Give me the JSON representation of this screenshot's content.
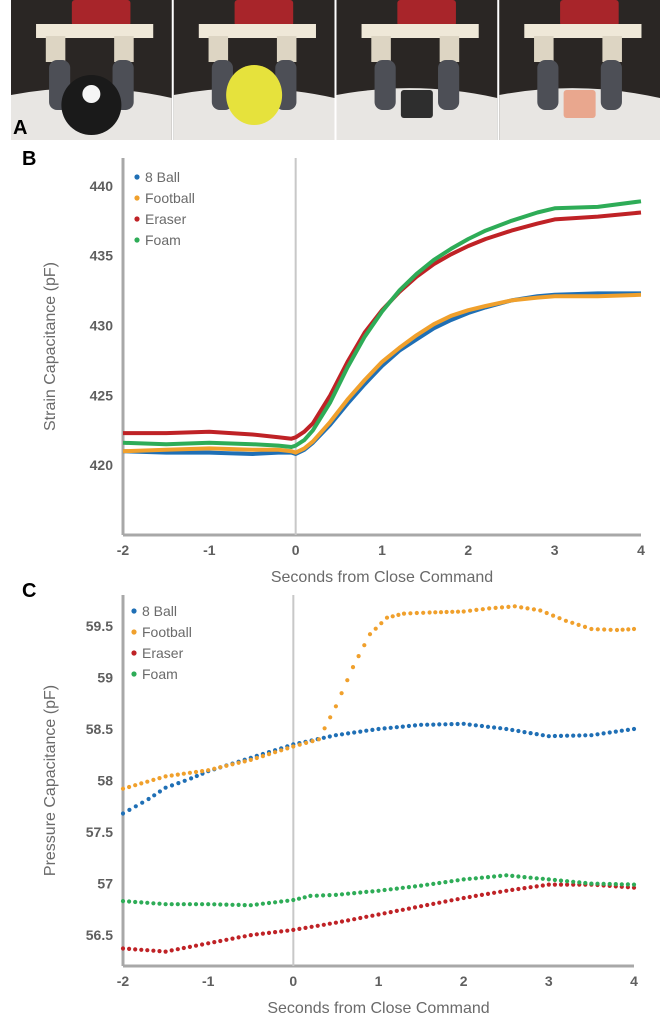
{
  "photos": {
    "panel_label": "A",
    "objects": [
      {
        "name": "8 Ball",
        "color": "#1a1a1a",
        "shape": "sphere"
      },
      {
        "name": "Football",
        "color": "#e6e23c",
        "shape": "ellipse"
      },
      {
        "name": "Eraser",
        "color": "#2e2e2e",
        "shape": "block"
      },
      {
        "name": "Foam",
        "color": "#e9a78e",
        "shape": "block"
      }
    ]
  },
  "panels": [
    {
      "label": "B"
    },
    {
      "label": "C"
    }
  ],
  "colors": {
    "8 Ball": "#1f6fb5",
    "Football": "#f0a02c",
    "Eraser": "#bf2226",
    "Foam": "#2eac57",
    "axis": "#a8a8a8",
    "zero_line": "#c8c8c8"
  },
  "chart_data": [
    {
      "type": "line",
      "title": "",
      "xlabel": "Seconds from Close Command",
      "ylabel": "Strain Capacitance (pF)",
      "xlim": [
        -2,
        4
      ],
      "ylim": [
        415,
        442
      ],
      "xticks": [
        "-2",
        "-1",
        "0",
        "1",
        "2",
        "3",
        "4"
      ],
      "yticks": [
        "420",
        "425",
        "430",
        "435",
        "440"
      ],
      "ytick_values": [
        420,
        425,
        430,
        435,
        440
      ],
      "legend_position": "top-left",
      "line_style": "solid",
      "series": [
        {
          "name": "8 Ball",
          "x": [
            -2,
            -1.5,
            -1,
            -0.5,
            -0.2,
            -0.05,
            0,
            0.1,
            0.2,
            0.4,
            0.6,
            0.8,
            1,
            1.2,
            1.4,
            1.6,
            1.8,
            2,
            2.2,
            2.5,
            2.8,
            3,
            3.5,
            4
          ],
          "y": [
            421.0,
            420.9,
            420.9,
            420.8,
            420.9,
            420.9,
            420.8,
            421.1,
            421.6,
            422.9,
            424.4,
            425.8,
            427.1,
            428.2,
            429.0,
            429.8,
            430.4,
            430.9,
            431.3,
            431.8,
            432.1,
            432.2,
            432.3,
            432.3
          ]
        },
        {
          "name": "Football",
          "x": [
            -2,
            -1.5,
            -1,
            -0.5,
            -0.2,
            -0.05,
            0,
            0.1,
            0.2,
            0.4,
            0.6,
            0.8,
            1,
            1.2,
            1.4,
            1.6,
            1.8,
            2,
            2.2,
            2.5,
            2.8,
            3,
            3.5,
            4
          ],
          "y": [
            421.0,
            421.1,
            421.2,
            421.1,
            421.1,
            421.0,
            420.9,
            421.2,
            421.7,
            423.1,
            424.7,
            426.1,
            427.4,
            428.4,
            429.3,
            430.1,
            430.7,
            431.1,
            431.4,
            431.8,
            432.0,
            432.1,
            432.1,
            432.2
          ]
        },
        {
          "name": "Eraser",
          "x": [
            -2,
            -1.5,
            -1,
            -0.5,
            -0.2,
            -0.05,
            0,
            0.1,
            0.2,
            0.4,
            0.6,
            0.8,
            1,
            1.2,
            1.4,
            1.6,
            1.8,
            2,
            2.2,
            2.5,
            2.8,
            3,
            3.5,
            4
          ],
          "y": [
            422.3,
            422.3,
            422.4,
            422.2,
            422.0,
            421.9,
            422.0,
            422.4,
            423.0,
            425.0,
            427.4,
            429.5,
            431.1,
            432.4,
            433.5,
            434.4,
            435.1,
            435.7,
            436.2,
            436.8,
            437.3,
            437.6,
            437.8,
            438.1
          ]
        },
        {
          "name": "Foam",
          "x": [
            -2,
            -1.5,
            -1,
            -0.5,
            -0.2,
            -0.05,
            0,
            0.1,
            0.2,
            0.4,
            0.6,
            0.8,
            1,
            1.2,
            1.4,
            1.6,
            1.8,
            2,
            2.2,
            2.5,
            2.8,
            3,
            3.5,
            4
          ],
          "y": [
            421.6,
            421.5,
            421.6,
            421.5,
            421.4,
            421.3,
            421.4,
            421.8,
            422.5,
            424.5,
            427.0,
            429.2,
            431.0,
            432.5,
            433.7,
            434.7,
            435.5,
            436.2,
            436.8,
            437.5,
            438.1,
            438.4,
            438.5,
            438.9
          ]
        }
      ]
    },
    {
      "type": "scatter",
      "title": "",
      "xlabel": "Seconds from Close Command",
      "ylabel": "Pressure Capacitance (pF)",
      "xlim": [
        -2,
        4
      ],
      "ylim": [
        56.2,
        59.8
      ],
      "xticks": [
        "-2",
        "-1",
        "0",
        "1",
        "2",
        "3",
        "4"
      ],
      "yticks": [
        "56.5",
        "57",
        "57.5",
        "58",
        "58.5",
        "59",
        "59.5"
      ],
      "ytick_values": [
        56.5,
        57,
        57.5,
        58,
        58.5,
        59,
        59.5
      ],
      "legend_position": "top-left",
      "line_style": "dotted",
      "series": [
        {
          "name": "8 Ball",
          "x": [
            -2,
            -1.7,
            -1.5,
            -1.2,
            -1,
            -0.5,
            0,
            0.5,
            1,
            1.5,
            2,
            2.5,
            3,
            3.5,
            4
          ],
          "y": [
            57.68,
            57.82,
            57.93,
            58.02,
            58.09,
            58.22,
            58.35,
            58.44,
            58.5,
            58.54,
            58.55,
            58.5,
            58.43,
            58.44,
            58.5
          ]
        },
        {
          "name": "Football",
          "x": [
            -2,
            -1.5,
            -1,
            -0.5,
            0,
            0.3,
            0.5,
            0.7,
            0.9,
            1.1,
            1.3,
            1.6,
            2,
            2.3,
            2.6,
            2.9,
            3.2,
            3.5,
            3.8,
            4
          ],
          "y": [
            57.92,
            58.04,
            58.1,
            58.2,
            58.33,
            58.4,
            58.72,
            59.1,
            59.42,
            59.58,
            59.62,
            59.63,
            59.64,
            59.67,
            59.69,
            59.65,
            59.55,
            59.47,
            59.46,
            59.47
          ]
        },
        {
          "name": "Eraser",
          "x": [
            -2,
            -1.5,
            -1,
            -0.5,
            0,
            0.5,
            1,
            1.5,
            2,
            2.5,
            3,
            3.5,
            4
          ],
          "y": [
            56.37,
            56.34,
            56.42,
            56.5,
            56.55,
            56.62,
            56.7,
            56.78,
            56.86,
            56.93,
            56.99,
            56.99,
            56.96
          ]
        },
        {
          "name": "Foam",
          "x": [
            -2,
            -1.5,
            -1,
            -0.5,
            0,
            0.2,
            0.5,
            1,
            1.5,
            2,
            2.5,
            3,
            3.5,
            4
          ],
          "y": [
            56.83,
            56.8,
            56.8,
            56.79,
            56.84,
            56.88,
            56.89,
            56.93,
            56.98,
            57.04,
            57.08,
            57.04,
            57.0,
            56.99
          ]
        }
      ]
    }
  ]
}
